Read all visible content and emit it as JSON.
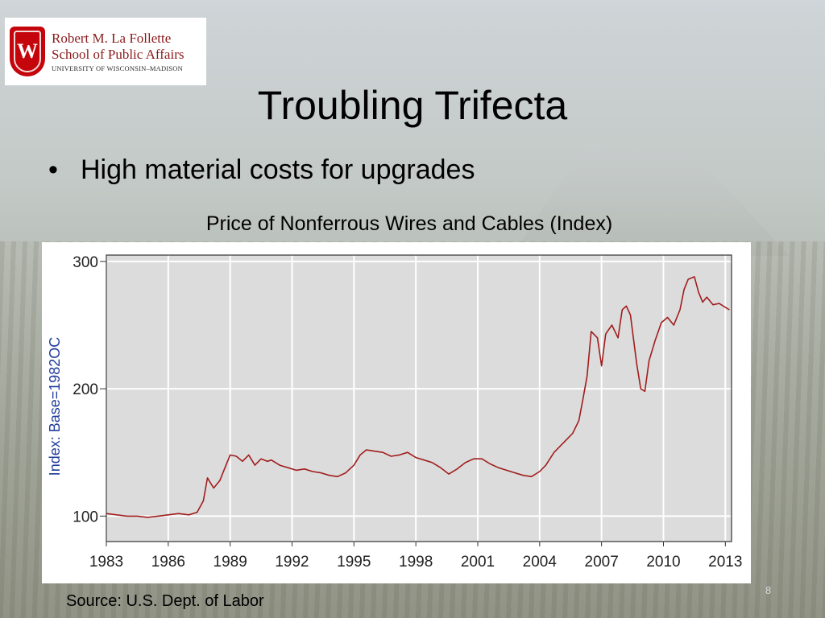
{
  "logo": {
    "crest_letter": "W",
    "line1": "Robert M. La Follette",
    "line2": "School of Public Affairs",
    "line3": "UNIVERSITY OF WISCONSIN–MADISON"
  },
  "slide": {
    "title": "Troubling Trifecta",
    "bullet": "High material costs for upgrades",
    "chart_caption": "Price of Nonferrous Wires and Cables (Index)",
    "source": "Source: U.S. Dept. of Labor",
    "page_number": "8"
  },
  "colors": {
    "plot_background": "#dcdcdc",
    "line": "#a11d1d",
    "ylabel": "#1f3c9a",
    "grid": "#ffffff"
  },
  "chart_data": {
    "type": "line",
    "title": "Price of Nonferrous Wires and Cables (Index)",
    "xlabel": "",
    "ylabel": "Index: Base=1982OC",
    "xlim": [
      1983,
      2013.3
    ],
    "ylim": [
      80,
      305
    ],
    "xticks": [
      1983,
      1986,
      1989,
      1992,
      1995,
      1998,
      2001,
      2004,
      2007,
      2010,
      2013
    ],
    "xtick_labels": [
      "1983",
      "1986",
      "1989",
      "1992",
      "1995",
      "1998",
      "2001",
      "2004",
      "2007",
      "2010",
      "2013"
    ],
    "yticks": [
      100,
      200,
      300
    ],
    "ytick_labels": [
      "100",
      "200",
      "300"
    ],
    "grid": true,
    "series": [
      {
        "name": "",
        "x": [
          1983.0,
          1983.5,
          1984.0,
          1984.5,
          1985.0,
          1985.5,
          1986.0,
          1986.5,
          1987.0,
          1987.4,
          1987.7,
          1987.9,
          1988.2,
          1988.5,
          1988.8,
          1989.0,
          1989.3,
          1989.6,
          1989.9,
          1990.2,
          1990.5,
          1990.8,
          1991.0,
          1991.4,
          1991.8,
          1992.2,
          1992.6,
          1993.0,
          1993.4,
          1993.8,
          1994.2,
          1994.6,
          1995.0,
          1995.3,
          1995.6,
          1996.0,
          1996.4,
          1996.8,
          1997.2,
          1997.6,
          1998.0,
          1998.4,
          1998.8,
          1999.2,
          1999.6,
          2000.0,
          2000.4,
          2000.8,
          2001.2,
          2001.6,
          2002.0,
          2002.4,
          2002.8,
          2003.2,
          2003.6,
          2004.0,
          2004.3,
          2004.7,
          2005.0,
          2005.3,
          2005.6,
          2005.9,
          2006.1,
          2006.3,
          2006.5,
          2006.8,
          2007.0,
          2007.2,
          2007.5,
          2007.8,
          2008.0,
          2008.2,
          2008.4,
          2008.7,
          2008.9,
          2009.1,
          2009.3,
          2009.6,
          2009.9,
          2010.2,
          2010.5,
          2010.8,
          2011.0,
          2011.2,
          2011.5,
          2011.7,
          2011.9,
          2012.1,
          2012.4,
          2012.7,
          2013.0,
          2013.2
        ],
        "values": [
          102,
          101,
          100,
          100,
          99,
          100,
          101,
          102,
          101,
          103,
          112,
          130,
          122,
          128,
          140,
          148,
          147,
          143,
          148,
          140,
          145,
          143,
          144,
          140,
          138,
          136,
          137,
          135,
          134,
          132,
          131,
          134,
          140,
          148,
          152,
          151,
          150,
          147,
          148,
          150,
          146,
          144,
          142,
          138,
          133,
          137,
          142,
          145,
          145,
          141,
          138,
          136,
          134,
          132,
          131,
          135,
          140,
          150,
          155,
          160,
          165,
          175,
          192,
          210,
          245,
          240,
          218,
          243,
          250,
          240,
          262,
          265,
          258,
          220,
          200,
          198,
          222,
          238,
          252,
          256,
          250,
          262,
          278,
          286,
          288,
          276,
          268,
          272,
          266,
          267,
          264,
          262
        ]
      }
    ]
  }
}
